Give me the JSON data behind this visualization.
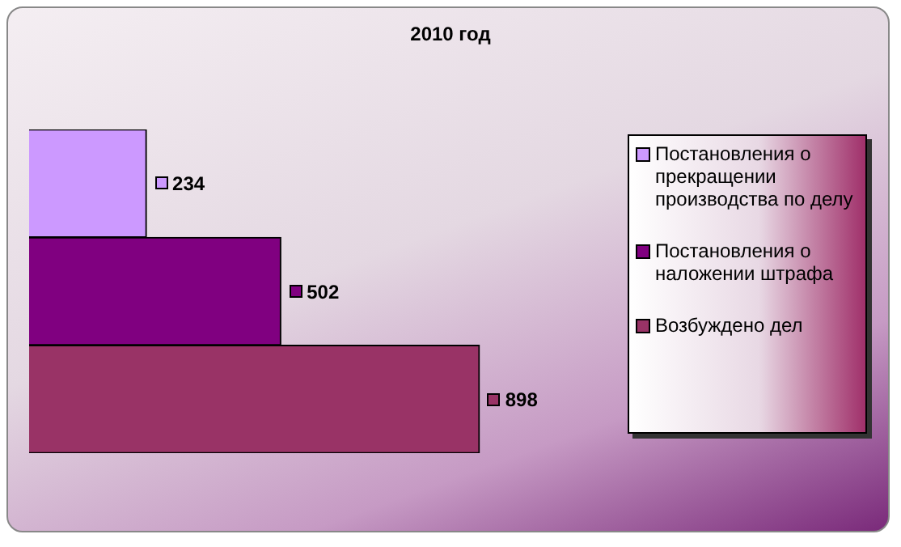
{
  "chart_data": {
    "type": "bar",
    "title": "2010 год",
    "orientation": "horizontal",
    "categories": [
      null
    ],
    "series": [
      {
        "name": "Постановления о прекращении производства по делу",
        "color": "#cc99ff",
        "values": [
          234
        ]
      },
      {
        "name": "Постановления о наложении штрафа",
        "color": "#800080",
        "values": [
          502
        ]
      },
      {
        "name": "Возбуждено дел",
        "color": "#993366",
        "values": [
          898
        ]
      }
    ],
    "data_labels": true,
    "legend": "right"
  }
}
